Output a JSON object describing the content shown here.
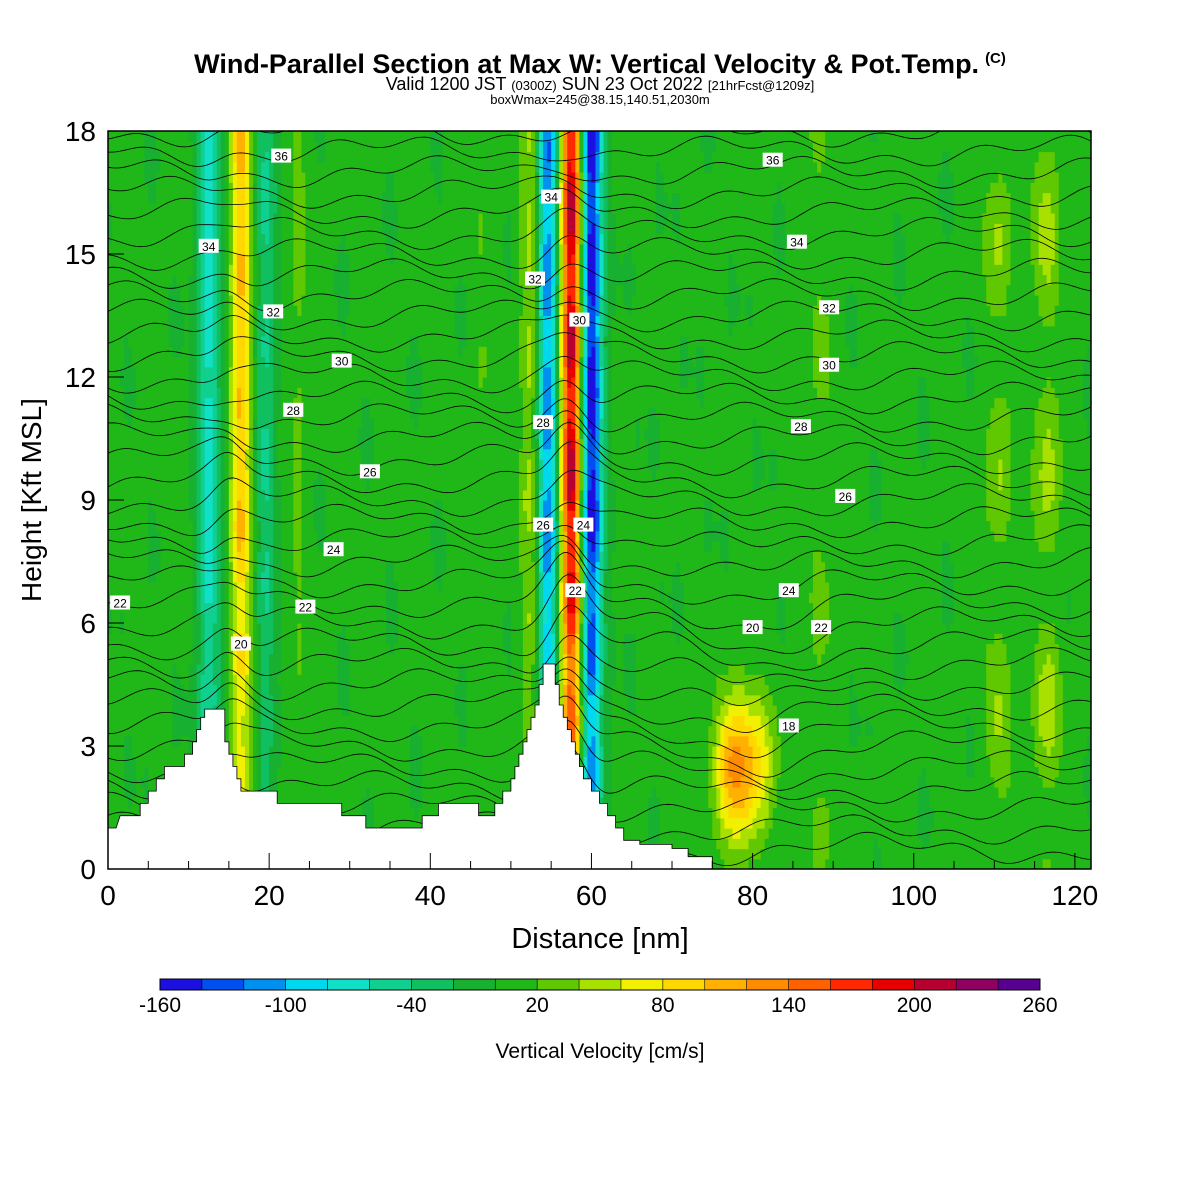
{
  "title": {
    "main": "Wind-Parallel Section at Max W: Vertical Velocity & Pot.Temp.",
    "copyright": "(C)",
    "valid_prefix": "Valid 1200 JST",
    "valid_zulu": "(0300Z)",
    "valid_date": "SUN 23 Oct 2022",
    "forecast": "[21hrFcst@1209z]",
    "boxinfo": "boxWmax=245@38.15,140.51,2030m"
  },
  "chart_data": {
    "type": "heatmap",
    "xlabel": "Distance [nm]",
    "ylabel": "Height [Kft MSL]",
    "xlim": [
      0,
      122
    ],
    "ylim": [
      0,
      18
    ],
    "x_ticks": [
      0,
      20,
      40,
      60,
      80,
      100,
      120
    ],
    "y_ticks": [
      0,
      3,
      6,
      9,
      12,
      15,
      18
    ],
    "colorbar": {
      "label": "Vertical Velocity [cm/s]",
      "tick_labels": [
        "-160",
        "-100",
        "-40",
        "20",
        "80",
        "140",
        "200",
        "260"
      ],
      "levels": [
        -160,
        -140,
        -120,
        -100,
        -80,
        -60,
        -40,
        -20,
        0,
        20,
        40,
        60,
        80,
        100,
        120,
        140,
        160,
        180,
        200,
        220,
        240,
        260
      ],
      "colors": [
        "#1c10e0",
        "#0050f0",
        "#0090f0",
        "#00d8f0",
        "#10e0c8",
        "#10d090",
        "#10c060",
        "#18b030",
        "#20b818",
        "#60c800",
        "#a8e000",
        "#f0f000",
        "#ffd800",
        "#ffb000",
        "#ff8c00",
        "#ff6000",
        "#ff2800",
        "#e80000",
        "#b80030",
        "#900060",
        "#580090"
      ]
    },
    "vertical_velocity_columns": [
      {
        "x": 12.5,
        "peak": -75
      },
      {
        "x": 16.5,
        "peak": 95
      },
      {
        "x": 19.5,
        "peak": -45
      },
      {
        "x": 23.5,
        "peak": 20
      },
      {
        "x": 46.5,
        "peak": 15
      },
      {
        "x": 52.5,
        "peak": 45
      },
      {
        "x": 54.5,
        "peak": -120
      },
      {
        "x": 57.5,
        "peak": 200
      },
      {
        "x": 60.0,
        "peak": -160
      },
      {
        "x": 77.5,
        "peak": 110
      },
      {
        "x": 80.5,
        "peak": 75
      },
      {
        "x": 88.5,
        "peak": 25
      },
      {
        "x": 110.5,
        "peak": 40
      },
      {
        "x": 116.5,
        "peak": 50
      }
    ],
    "terrain": [
      [
        0,
        1.0
      ],
      [
        1,
        1.0
      ],
      [
        1.5,
        1.3
      ],
      [
        4,
        1.3
      ],
      [
        4,
        1.6
      ],
      [
        5,
        1.6
      ],
      [
        5,
        1.9
      ],
      [
        6,
        1.9
      ],
      [
        6,
        2.2
      ],
      [
        7,
        2.2
      ],
      [
        7,
        2.5
      ],
      [
        9.5,
        2.5
      ],
      [
        9.5,
        2.8
      ],
      [
        10.5,
        2.8
      ],
      [
        10.5,
        3.1
      ],
      [
        11,
        3.1
      ],
      [
        11,
        3.4
      ],
      [
        11.5,
        3.4
      ],
      [
        11.5,
        3.7
      ],
      [
        12,
        3.7
      ],
      [
        12,
        3.9
      ],
      [
        14.5,
        3.9
      ],
      [
        14.5,
        3.1
      ],
      [
        15,
        3.1
      ],
      [
        15,
        2.8
      ],
      [
        15.5,
        2.8
      ],
      [
        15.5,
        2.5
      ],
      [
        16,
        2.5
      ],
      [
        16,
        2.2
      ],
      [
        16.5,
        2.2
      ],
      [
        16.5,
        1.9
      ],
      [
        21,
        1.9
      ],
      [
        21,
        1.6
      ],
      [
        29,
        1.6
      ],
      [
        29,
        1.3
      ],
      [
        32,
        1.3
      ],
      [
        32,
        1.0
      ],
      [
        39,
        1.0
      ],
      [
        39,
        1.3
      ],
      [
        41,
        1.3
      ],
      [
        41,
        1.6
      ],
      [
        46,
        1.6
      ],
      [
        46,
        1.3
      ],
      [
        48,
        1.3
      ],
      [
        48,
        1.6
      ],
      [
        49,
        1.6
      ],
      [
        49,
        1.9
      ],
      [
        50,
        1.9
      ],
      [
        50,
        2.2
      ],
      [
        50.5,
        2.2
      ],
      [
        50.5,
        2.5
      ],
      [
        51,
        2.5
      ],
      [
        51,
        2.8
      ],
      [
        51.5,
        2.8
      ],
      [
        51.5,
        3.1
      ],
      [
        52,
        3.1
      ],
      [
        52,
        3.4
      ],
      [
        52.5,
        3.4
      ],
      [
        52.5,
        3.7
      ],
      [
        53,
        3.7
      ],
      [
        53,
        4.0
      ],
      [
        53.5,
        4.0
      ],
      [
        53.5,
        4.5
      ],
      [
        54,
        4.5
      ],
      [
        54,
        5.0
      ],
      [
        55.5,
        5.0
      ],
      [
        55.5,
        4.5
      ],
      [
        56,
        4.5
      ],
      [
        56,
        4.0
      ],
      [
        56.5,
        4.0
      ],
      [
        56.5,
        3.7
      ],
      [
        57,
        3.7
      ],
      [
        57,
        3.4
      ],
      [
        57.5,
        3.4
      ],
      [
        57.5,
        3.1
      ],
      [
        58,
        3.1
      ],
      [
        58,
        2.8
      ],
      [
        58.5,
        2.8
      ],
      [
        58.5,
        2.5
      ],
      [
        59,
        2.5
      ],
      [
        59,
        2.2
      ],
      [
        60,
        2.2
      ],
      [
        60,
        1.9
      ],
      [
        61,
        1.9
      ],
      [
        61,
        1.6
      ],
      [
        62,
        1.6
      ],
      [
        62,
        1.3
      ],
      [
        63,
        1.3
      ],
      [
        63,
        1.0
      ],
      [
        64,
        1.0
      ],
      [
        64,
        0.7
      ],
      [
        66,
        0.7
      ],
      [
        66,
        0.6
      ],
      [
        70,
        0.6
      ],
      [
        70,
        0.5
      ],
      [
        72,
        0.5
      ],
      [
        72,
        0.3
      ],
      [
        75,
        0.3
      ],
      [
        75,
        0
      ],
      [
        0,
        0
      ]
    ],
    "potential_temperature": {
      "interval": 1,
      "labels": [
        {
          "text": "36",
          "x": 21.5,
          "y": 17.4
        },
        {
          "text": "34",
          "x": 12.5,
          "y": 15.2
        },
        {
          "text": "32",
          "x": 20.5,
          "y": 13.6
        },
        {
          "text": "30",
          "x": 29.0,
          "y": 12.4
        },
        {
          "text": "28",
          "x": 23.0,
          "y": 11.2
        },
        {
          "text": "26",
          "x": 32.5,
          "y": 9.7
        },
        {
          "text": "24",
          "x": 28.0,
          "y": 7.8
        },
        {
          "text": "22",
          "x": 1.5,
          "y": 6.5
        },
        {
          "text": "22",
          "x": 24.5,
          "y": 6.4
        },
        {
          "text": "20",
          "x": 16.5,
          "y": 5.5
        },
        {
          "text": "34",
          "x": 55.0,
          "y": 16.4
        },
        {
          "text": "32",
          "x": 53.0,
          "y": 14.4
        },
        {
          "text": "30",
          "x": 58.5,
          "y": 13.4
        },
        {
          "text": "28",
          "x": 54.0,
          "y": 10.9
        },
        {
          "text": "26",
          "x": 54.0,
          "y": 8.4
        },
        {
          "text": "24",
          "x": 59.0,
          "y": 8.4
        },
        {
          "text": "22",
          "x": 58.0,
          "y": 6.8
        },
        {
          "text": "36",
          "x": 82.5,
          "y": 17.3
        },
        {
          "text": "34",
          "x": 85.5,
          "y": 15.3
        },
        {
          "text": "32",
          "x": 89.5,
          "y": 13.7
        },
        {
          "text": "30",
          "x": 89.5,
          "y": 12.3
        },
        {
          "text": "28",
          "x": 86.0,
          "y": 10.8
        },
        {
          "text": "26",
          "x": 91.5,
          "y": 9.1
        },
        {
          "text": "24",
          "x": 84.5,
          "y": 6.8
        },
        {
          "text": "20",
          "x": 80.0,
          "y": 5.9
        },
        {
          "text": "22",
          "x": 88.5,
          "y": 5.9
        },
        {
          "text": "18",
          "x": 84.5,
          "y": 3.5
        }
      ]
    }
  }
}
